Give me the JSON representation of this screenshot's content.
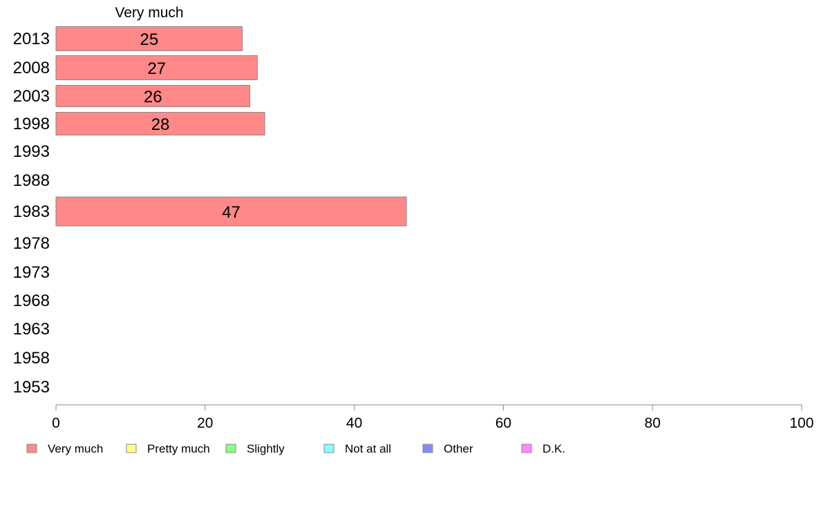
{
  "chart_data": {
    "type": "bar",
    "orientation": "horizontal",
    "stacked": true,
    "column_header": "Very much",
    "categories": [
      "2013",
      "2008",
      "2003",
      "1998",
      "1993",
      "1988",
      "1983",
      "1978",
      "1973",
      "1968",
      "1963",
      "1958",
      "1953"
    ],
    "series": [
      {
        "name": "Very much",
        "color": "#ff8888",
        "values": [
          25,
          27,
          26,
          28,
          null,
          null,
          47,
          null,
          null,
          null,
          null,
          null,
          null
        ],
        "labels": [
          "25",
          "27",
          "26",
          "28",
          "",
          "",
          "47",
          "",
          "",
          "",
          "",
          "",
          ""
        ]
      },
      {
        "name": "Pretty much",
        "color": "#ffff88",
        "values": [
          null,
          null,
          null,
          null,
          null,
          null,
          null,
          null,
          null,
          null,
          null,
          null,
          null
        ]
      },
      {
        "name": "Slightly",
        "color": "#88ff88",
        "values": [
          null,
          null,
          null,
          null,
          null,
          null,
          null,
          null,
          null,
          null,
          null,
          null,
          null
        ]
      },
      {
        "name": "Not at all",
        "color": "#88ffff",
        "values": [
          null,
          null,
          null,
          null,
          null,
          null,
          null,
          null,
          null,
          null,
          null,
          null,
          null
        ]
      },
      {
        "name": "Other",
        "color": "#8888ff",
        "values": [
          null,
          null,
          null,
          null,
          null,
          null,
          null,
          null,
          null,
          null,
          null,
          null,
          null
        ]
      },
      {
        "name": "D.K.",
        "color": "#ff88ff",
        "values": [
          null,
          null,
          null,
          null,
          null,
          null,
          null,
          null,
          null,
          null,
          null,
          null,
          null
        ]
      }
    ],
    "xlim": [
      0,
      100
    ],
    "xticks": [
      "0",
      "20",
      "40",
      "60",
      "80",
      "100"
    ],
    "grid": false,
    "legend_position": "bottom"
  }
}
